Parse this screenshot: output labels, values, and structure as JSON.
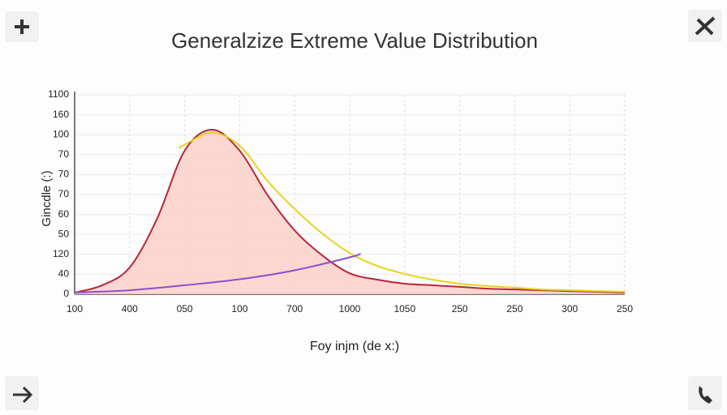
{
  "chart_data": {
    "type": "line",
    "title": "Generalzize Extreme Value Distribution",
    "x_label": "Foy injm (de x:)",
    "y_label": "Gincdle (:)",
    "xlim": [
      0,
      10
    ],
    "ylim": [
      0,
      10
    ],
    "xticks": [
      {
        "value": 0,
        "label": "100"
      },
      {
        "value": 1,
        "label": "400"
      },
      {
        "value": 2,
        "label": "050"
      },
      {
        "value": 3,
        "label": "100"
      },
      {
        "value": 4,
        "label": "700"
      },
      {
        "value": 5,
        "label": "1000"
      },
      {
        "value": 6,
        "label": "1050"
      },
      {
        "value": 7,
        "label": "250"
      },
      {
        "value": 8,
        "label": "250"
      },
      {
        "value": 9,
        "label": "300"
      },
      {
        "value": 10,
        "label": "250"
      }
    ],
    "yticks": [
      {
        "value": 0,
        "label": "0"
      },
      {
        "value": 1,
        "label": "40"
      },
      {
        "value": 2,
        "label": "120"
      },
      {
        "value": 3,
        "label": "50"
      },
      {
        "value": 4,
        "label": "60"
      },
      {
        "value": 5,
        "label": "70"
      },
      {
        "value": 6,
        "label": "70"
      },
      {
        "value": 7,
        "label": "70"
      },
      {
        "value": 8,
        "label": "100"
      },
      {
        "value": 9,
        "label": "160"
      },
      {
        "value": 10,
        "label": "1100"
      }
    ],
    "grid": true,
    "series": [
      {
        "color": "#b8263a",
        "fill": "#fbd0c8",
        "x": [
          0,
          0.5,
          1,
          1.5,
          2,
          2.5,
          3,
          3.5,
          4,
          4.5,
          5,
          5.5,
          6,
          6.5,
          7,
          7.5,
          8,
          8.5,
          9,
          9.5,
          10
        ],
        "values": [
          0.08,
          0.45,
          1.34,
          3.8,
          7.2,
          8.25,
          7.2,
          5.0,
          3.2,
          1.95,
          1.05,
          0.73,
          0.53,
          0.45,
          0.37,
          0.28,
          0.24,
          0.2,
          0.16,
          0.12,
          0.08
        ]
      },
      {
        "color": "#e6d21e",
        "x": [
          1.9,
          2,
          2.5,
          3,
          3.5,
          4,
          4.5,
          5,
          5.5,
          6,
          6.5,
          7,
          7.5,
          8,
          8.5,
          9,
          9.5,
          10
        ],
        "values": [
          7.3,
          7.5,
          8.1,
          7.45,
          5.7,
          4.27,
          3.05,
          2.07,
          1.42,
          1.02,
          0.73,
          0.53,
          0.41,
          0.33,
          0.24,
          0.2,
          0.16,
          0.12
        ]
      },
      {
        "color": "#8a4fd0",
        "x": [
          0,
          1,
          2,
          3,
          4,
          5,
          5.2
        ],
        "values": [
          0.08,
          0.2,
          0.45,
          0.75,
          1.2,
          1.85,
          2.03
        ]
      }
    ]
  }
}
